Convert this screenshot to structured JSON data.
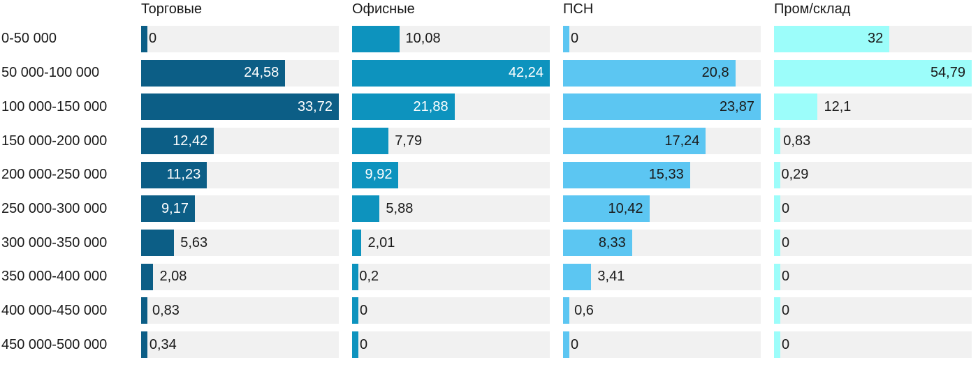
{
  "chart_data": {
    "type": "bar",
    "orientation": "horizontal",
    "title": "",
    "xlabel": "",
    "ylabel": "",
    "grid": false,
    "legend_position": "column-headers",
    "scaling": "each column scaled independently to its own maximum value",
    "track_color": "#f1f1f1",
    "text_color": "#1a1a1a",
    "categories": [
      "0-50 000",
      "50 000-100 000",
      "100 000-150 000",
      "150 000-200 000",
      "200 000-250 000",
      "250 000-300 000",
      "300 000-350 000",
      "350 000-400 000",
      "400 000-450 000",
      "450 000-500 000"
    ],
    "series": [
      {
        "name": "Торговые",
        "color": "#0c5e86",
        "inside_label_color": "#ffffff",
        "values": [
          0,
          24.58,
          33.72,
          12.42,
          11.23,
          9.17,
          5.63,
          2.08,
          0.83,
          0.34
        ],
        "labels": [
          "0",
          "24,58",
          "33,72",
          "12,42",
          "11,23",
          "9,17",
          "5,63",
          "2,08",
          "0,83",
          "0,34"
        ],
        "label_pos": [
          "zero",
          "in",
          "in",
          "in",
          "in",
          "in",
          "out",
          "out",
          "out",
          "out"
        ]
      },
      {
        "name": "Офисные",
        "color": "#0d93be",
        "inside_label_color": "#ffffff",
        "values": [
          10.08,
          42.24,
          21.88,
          7.79,
          9.92,
          5.88,
          2.01,
          0.2,
          0,
          0
        ],
        "labels": [
          "10,08",
          "42,24",
          "21,88",
          "7,79",
          "9,92",
          "5,88",
          "2,01",
          "0,2",
          "0",
          "0"
        ],
        "label_pos": [
          "out",
          "in",
          "in",
          "out",
          "in",
          "out",
          "out",
          "out",
          "zero",
          "zero"
        ]
      },
      {
        "name": "ПСН",
        "color": "#5cc6f2",
        "inside_label_color": "#1a1a1a",
        "values": [
          0,
          20.8,
          23.87,
          17.24,
          15.33,
          10.42,
          8.33,
          3.41,
          0.6,
          0
        ],
        "labels": [
          "0",
          "20,8",
          "23,87",
          "17,24",
          "15,33",
          "10,42",
          "8,33",
          "3,41",
          "0,6",
          "0"
        ],
        "label_pos": [
          "zero",
          "in",
          "in",
          "in",
          "in",
          "in",
          "in",
          "out",
          "out",
          "zero"
        ]
      },
      {
        "name": "Пром/склад",
        "color": "#9cfdfa",
        "inside_label_color": "#1a1a1a",
        "values": [
          32,
          54.79,
          12.1,
          0.83,
          0.29,
          0,
          0,
          0,
          0,
          0
        ],
        "labels": [
          "32",
          "54,79",
          "12,1",
          "0,83",
          "0,29",
          "0",
          "0",
          "0",
          "0",
          "0"
        ],
        "label_pos": [
          "in",
          "in",
          "out",
          "out",
          "out",
          "zero",
          "zero",
          "zero",
          "zero",
          "zero"
        ]
      }
    ]
  }
}
